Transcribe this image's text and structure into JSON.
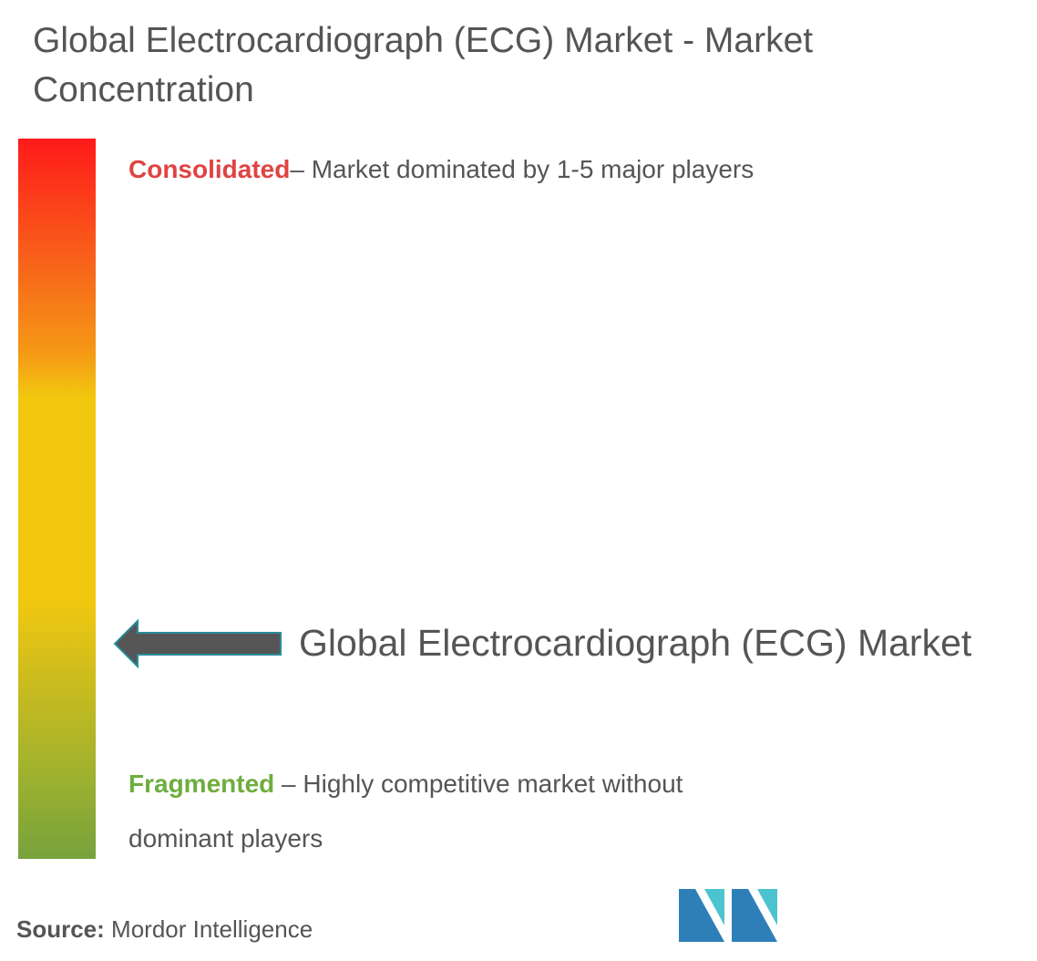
{
  "header": {
    "title": "Global Electrocardiograph (ECG) Market - Market Concentration"
  },
  "scale": {
    "top": {
      "label": "Consolidated",
      "description": "– Market dominated by 1-5 major players"
    },
    "bottom": {
      "label": "Fragmented",
      "description": " – Highly competitive market without dominant players"
    }
  },
  "marker": {
    "label": "Global Electrocardiograph (ECG) Market"
  },
  "footer": {
    "source_label": "Source:",
    "source": "Mordor Intelligence"
  }
}
